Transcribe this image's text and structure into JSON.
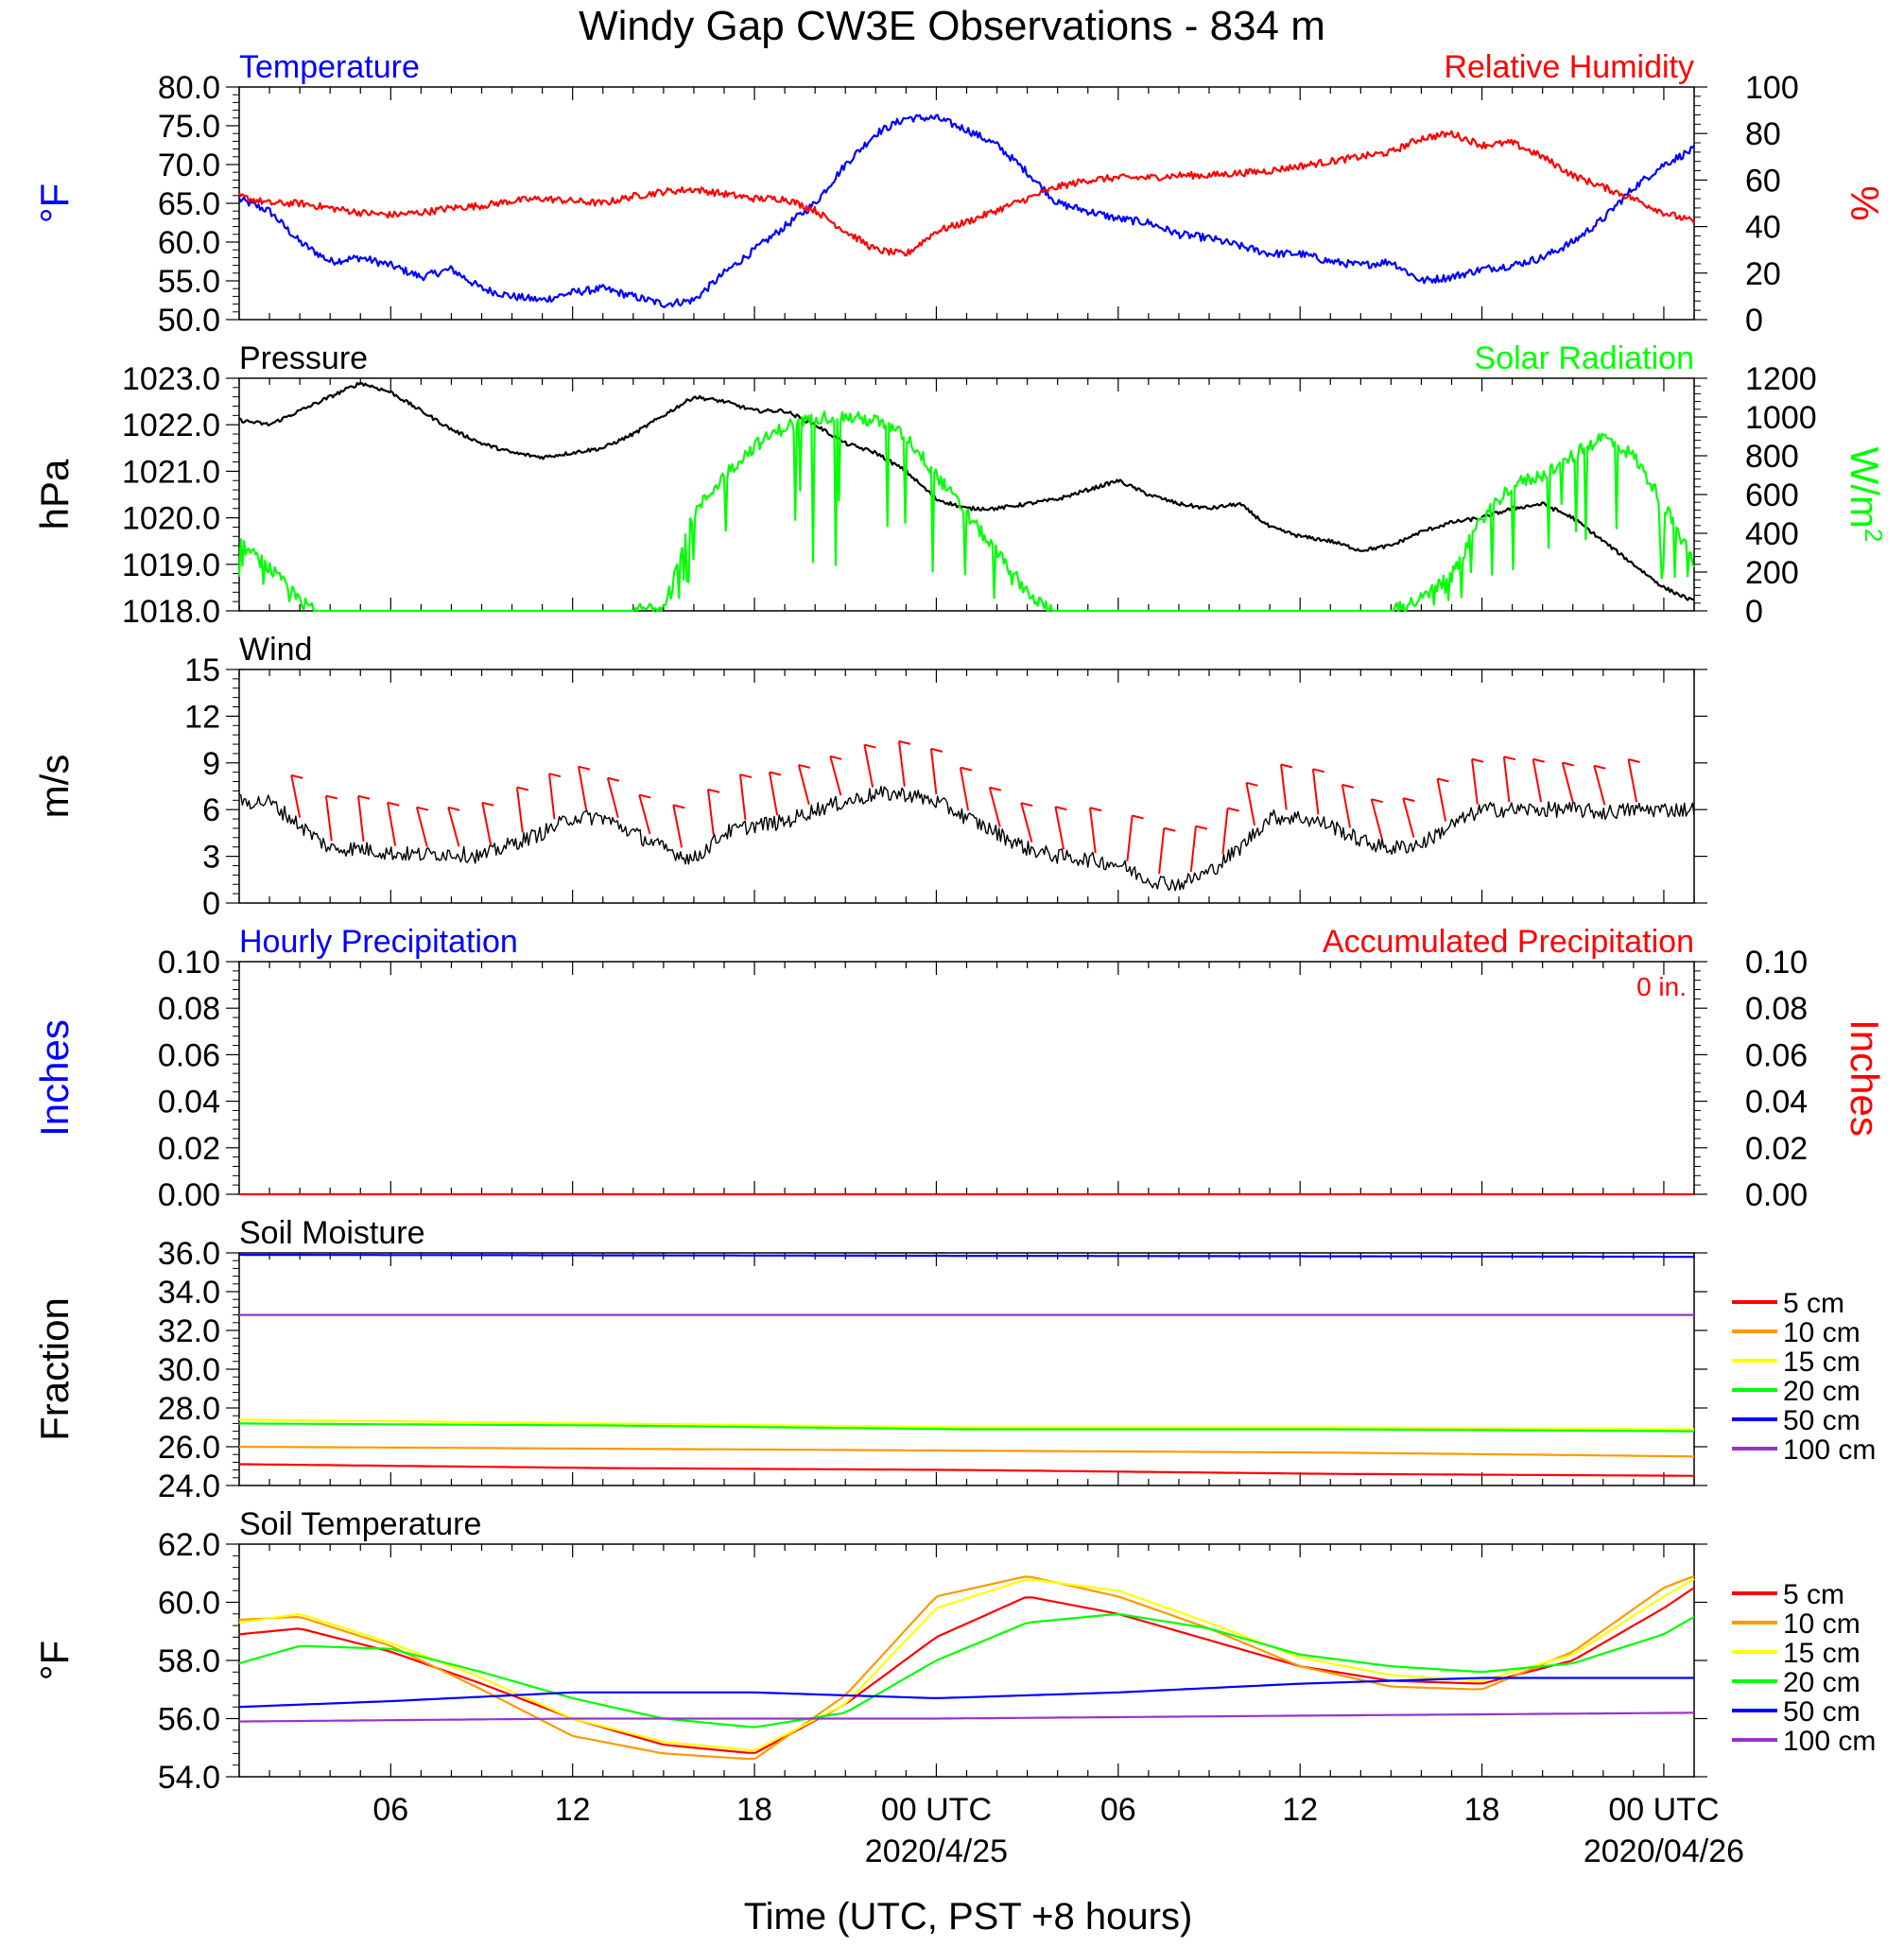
{
  "title": "Windy Gap CW3E Observations - 834 m",
  "x_axis": {
    "label": "Time (UTC, PST +8 hours)",
    "tick_labels": [
      "06",
      "12",
      "18",
      "00 UTC",
      "06",
      "12",
      "18",
      "00 UTC"
    ],
    "tick_hours": [
      6,
      12,
      18,
      24,
      30,
      36,
      42,
      48
    ],
    "date_labels": [
      {
        "hour": 24,
        "text": "2020/4/25"
      },
      {
        "hour": 48,
        "text": "2020/04/26"
      }
    ],
    "range_hours": [
      1,
      49
    ]
  },
  "chart_data": [
    {
      "type": "line",
      "panel": "temperature_humidity",
      "left_title": "Temperature",
      "right_title": "Relative Humidity",
      "ylabel_left": "°F",
      "ylabel_right": "%",
      "ylim_left": [
        50,
        80
      ],
      "ylim_right": [
        0,
        100
      ],
      "yticks_left": [
        "80.0",
        "75.0",
        "70.0",
        "65.0",
        "60.0",
        "55.0",
        "50.0"
      ],
      "yticks_right": [
        "100",
        "80",
        "60",
        "40",
        "20",
        "0"
      ],
      "colors": {
        "left": "#0000ff",
        "right": "#ff0000"
      },
      "series": [
        {
          "name": "Temperature",
          "axis": "left",
          "noise": 0.5,
          "x": [
            1,
            2,
            3,
            4,
            5,
            6,
            7,
            8,
            9,
            10,
            11,
            12,
            13,
            14,
            15,
            16,
            17,
            18,
            19,
            20,
            21,
            22,
            23,
            24,
            25,
            26,
            27,
            28,
            29,
            30,
            31,
            32,
            33,
            34,
            35,
            36,
            37,
            38,
            39,
            40,
            41,
            42,
            43,
            44,
            45,
            46,
            47,
            48,
            49
          ],
          "y": [
            65.5,
            64,
            60,
            57.5,
            58,
            57,
            55.5,
            56.5,
            54,
            53,
            52.5,
            53.5,
            54,
            53,
            52,
            52.5,
            56,
            59,
            62,
            65,
            70,
            74,
            76,
            76,
            74.5,
            72.5,
            69,
            65,
            64,
            63,
            62.5,
            61,
            60.5,
            59.5,
            58.5,
            58.5,
            57.5,
            57,
            57.5,
            55,
            55.5,
            56.5,
            57,
            58,
            60,
            63,
            67,
            70,
            72
          ]
        },
        {
          "name": "Relative Humidity",
          "axis": "right",
          "noise": 1.5,
          "x": [
            1,
            2,
            3,
            4,
            5,
            6,
            7,
            8,
            9,
            10,
            11,
            12,
            13,
            14,
            15,
            16,
            17,
            18,
            19,
            20,
            21,
            22,
            23,
            24,
            25,
            26,
            27,
            28,
            29,
            30,
            31,
            32,
            33,
            34,
            35,
            36,
            37,
            38,
            39,
            40,
            41,
            42,
            43,
            44,
            45,
            46,
            47,
            48,
            49
          ],
          "y": [
            53,
            50,
            50,
            48,
            46,
            45,
            46,
            48,
            49,
            51,
            52,
            51,
            50,
            53,
            55,
            56,
            54,
            52,
            52,
            47,
            38,
            30,
            28,
            38,
            42,
            47,
            52,
            57,
            60,
            61,
            61,
            62,
            62,
            63,
            64,
            66,
            68,
            70,
            72,
            78,
            80,
            75,
            76,
            70,
            62,
            57,
            52,
            46,
            42
          ]
        }
      ]
    },
    {
      "type": "line",
      "panel": "pressure_solar",
      "left_title": "Pressure",
      "right_title": "Solar Radiation",
      "ylabel_left": "hPa",
      "ylabel_right": "W/m",
      "ylabel_right_sup": "2",
      "ylim_left": [
        1018,
        1023
      ],
      "ylim_right": [
        0,
        1200
      ],
      "yticks_left": [
        "1023.0",
        "1022.0",
        "1021.0",
        "1020.0",
        "1019.0",
        "1018.0"
      ],
      "yticks_right": [
        "1200",
        "1000",
        "800",
        "600",
        "400",
        "200",
        "0"
      ],
      "colors": {
        "left": "#000000",
        "right": "#00ff00"
      },
      "series": [
        {
          "name": "Pressure",
          "axis": "left",
          "noise": 0.04,
          "x": [
            1,
            2,
            3,
            4,
            5,
            6,
            7,
            8,
            9,
            10,
            11,
            12,
            13,
            14,
            15,
            16,
            17,
            18,
            19,
            20,
            21,
            22,
            23,
            24,
            25,
            26,
            27,
            28,
            29,
            30,
            31,
            32,
            33,
            34,
            35,
            36,
            37,
            38,
            39,
            40,
            41,
            42,
            43,
            44,
            45,
            46,
            47,
            48,
            49
          ],
          "y": [
            1022.1,
            1022.0,
            1022.3,
            1022.6,
            1022.9,
            1022.7,
            1022.3,
            1021.9,
            1021.6,
            1021.4,
            1021.3,
            1021.4,
            1021.5,
            1021.8,
            1022.2,
            1022.6,
            1022.5,
            1022.3,
            1022.3,
            1022.0,
            1021.6,
            1021.4,
            1021.0,
            1020.4,
            1020.2,
            1020.2,
            1020.3,
            1020.4,
            1020.6,
            1020.8,
            1020.5,
            1020.3,
            1020.2,
            1020.3,
            1019.8,
            1019.6,
            1019.5,
            1019.3,
            1019.4,
            1019.7,
            1019.9,
            1020.0,
            1020.2,
            1020.3,
            1020.0,
            1019.5,
            1019.0,
            1018.5,
            1018.2
          ]
        },
        {
          "name": "Solar Radiation",
          "axis": "right",
          "noise": 35,
          "spiky": true,
          "x": [
            1,
            2,
            3,
            3.5,
            10,
            14,
            15,
            16,
            17,
            18,
            19,
            20,
            21,
            22,
            23,
            24,
            25,
            26,
            27,
            27.5,
            28,
            37,
            39,
            40,
            41,
            42,
            43,
            44,
            45,
            46,
            47,
            48,
            49
          ],
          "y": [
            350,
            220,
            50,
            0,
            0,
            0,
            30,
            500,
            700,
            850,
            950,
            1000,
            1000,
            980,
            900,
            700,
            500,
            300,
            100,
            30,
            0,
            0,
            0,
            60,
            180,
            480,
            650,
            700,
            800,
            900,
            800,
            550,
            250
          ]
        }
      ]
    },
    {
      "type": "line",
      "panel": "wind",
      "left_title": "Wind",
      "ylabel_left": "m/s",
      "ylim_left": [
        0,
        15
      ],
      "yticks_left": [
        "15",
        "12",
        "9",
        "6",
        "3",
        "0"
      ],
      "colors": {
        "left": "#000000",
        "barbs": "#ff0000"
      },
      "series": [
        {
          "name": "Wind",
          "axis": "left",
          "noise": 0.5,
          "x": [
            1,
            2,
            3,
            4,
            5,
            6,
            7,
            8,
            9,
            10,
            11,
            12,
            13,
            14,
            15,
            16,
            17,
            18,
            19,
            20,
            21,
            22,
            23,
            24,
            25,
            26,
            27,
            28,
            29,
            30,
            31,
            32,
            33,
            34,
            35,
            36,
            37,
            38,
            39,
            40,
            41,
            42,
            43,
            44,
            45,
            46,
            47,
            48,
            49
          ],
          "y": [
            6.5,
            6.5,
            5,
            3.5,
            3.5,
            3.2,
            3.1,
            3.2,
            3.0,
            3.8,
            4.5,
            5.5,
            5.5,
            4.5,
            3.5,
            2.8,
            4.5,
            5.0,
            5.2,
            6.0,
            6.5,
            7.0,
            7.0,
            6.5,
            5.5,
            4.5,
            3.5,
            3.0,
            2.8,
            2.5,
            1.5,
            1.2,
            2.0,
            3.5,
            5.5,
            5.5,
            5.0,
            4.0,
            3.5,
            3.8,
            5.0,
            6.0,
            6.0,
            6.0,
            6.0,
            5.8,
            6.0,
            6.0,
            6.0
          ]
        }
      ]
    },
    {
      "type": "line",
      "panel": "precipitation",
      "left_title": "Hourly Precipitation",
      "right_title": "Accumulated Precipitation",
      "annotation": "0 in.",
      "ylabel_left": "Inches",
      "ylabel_right": "Inches",
      "ylim_left": [
        0,
        0.1
      ],
      "ylim_right": [
        0,
        0.1
      ],
      "yticks_left": [
        "0.10",
        "0.08",
        "0.06",
        "0.04",
        "0.02",
        "0.00"
      ],
      "yticks_right": [
        "0.10",
        "0.08",
        "0.06",
        "0.04",
        "0.02",
        "0.00"
      ],
      "colors": {
        "left": "#0000ff",
        "right": "#ff0000"
      },
      "series": [
        {
          "name": "Accumulated Precipitation",
          "axis": "right",
          "x": [
            1,
            49
          ],
          "y": [
            0,
            0
          ]
        }
      ]
    },
    {
      "type": "line",
      "panel": "soil_moisture",
      "left_title": "Soil Moisture",
      "ylabel_left": "Fraction",
      "ylim_left": [
        24,
        36
      ],
      "yticks_left": [
        "36.0",
        "34.0",
        "32.0",
        "30.0",
        "28.0",
        "26.0",
        "24.0"
      ],
      "legend": "right",
      "series": [
        {
          "name": "5 cm",
          "color": "#ff0000",
          "axis": "left",
          "x": [
            1,
            13,
            25,
            37,
            49
          ],
          "y": [
            25.1,
            24.9,
            24.8,
            24.6,
            24.5
          ]
        },
        {
          "name": "10 cm",
          "color": "#ff9900",
          "axis": "left",
          "x": [
            1,
            13,
            25,
            37,
            49
          ],
          "y": [
            26.0,
            25.9,
            25.8,
            25.7,
            25.5
          ]
        },
        {
          "name": "15 cm",
          "color": "#ffff00",
          "axis": "left",
          "x": [
            1,
            13,
            25,
            37,
            49
          ],
          "y": [
            27.4,
            27.2,
            27.0,
            27.0,
            26.9
          ]
        },
        {
          "name": "20 cm",
          "color": "#00ff00",
          "axis": "left",
          "x": [
            1,
            13,
            25,
            37,
            49
          ],
          "y": [
            27.2,
            27.1,
            26.9,
            26.9,
            26.8
          ]
        },
        {
          "name": "50 cm",
          "color": "#0000ff",
          "axis": "left",
          "x": [
            1,
            49
          ],
          "y": [
            35.9,
            35.8
          ]
        },
        {
          "name": "100 cm",
          "color": "#9933cc",
          "axis": "left",
          "x": [
            1,
            49
          ],
          "y": [
            32.8,
            32.8
          ]
        }
      ]
    },
    {
      "type": "line",
      "panel": "soil_temperature",
      "left_title": "Soil Temperature",
      "ylabel_left": "°F",
      "ylim_left": [
        54,
        62
      ],
      "yticks_left": [
        "62.0",
        "60.0",
        "58.0",
        "56.0",
        "54.0"
      ],
      "legend": "right",
      "series": [
        {
          "name": "5 cm",
          "color": "#ff0000",
          "axis": "left",
          "x": [
            1,
            3,
            6,
            9,
            12,
            15,
            18,
            21,
            24,
            27,
            30,
            33,
            36,
            39,
            42,
            45,
            48,
            49
          ],
          "y": [
            58.9,
            59.1,
            58.3,
            57.2,
            56.0,
            55.1,
            54.8,
            56.5,
            58.8,
            60.2,
            59.6,
            58.7,
            57.8,
            57.3,
            57.2,
            58.0,
            59.8,
            60.5
          ]
        },
        {
          "name": "10 cm",
          "color": "#ff9900",
          "axis": "left",
          "x": [
            1,
            3,
            6,
            9,
            12,
            15,
            18,
            21,
            24,
            27,
            30,
            33,
            36,
            39,
            42,
            45,
            48,
            49
          ],
          "y": [
            59.4,
            59.5,
            58.5,
            57.0,
            55.4,
            54.8,
            54.6,
            56.8,
            60.2,
            60.9,
            60.2,
            59.1,
            57.8,
            57.1,
            57.0,
            58.3,
            60.5,
            60.9
          ]
        },
        {
          "name": "15 cm",
          "color": "#ffff00",
          "axis": "left",
          "x": [
            1,
            3,
            6,
            9,
            12,
            15,
            18,
            21,
            24,
            27,
            30,
            33,
            36,
            39,
            42,
            45,
            48,
            49
          ],
          "y": [
            59.3,
            59.6,
            58.6,
            57.4,
            56.0,
            55.2,
            54.9,
            56.5,
            59.8,
            60.8,
            60.4,
            59.3,
            58.1,
            57.5,
            57.3,
            58.2,
            60.2,
            60.8
          ]
        },
        {
          "name": "20 cm",
          "color": "#00ff00",
          "axis": "left",
          "x": [
            1,
            3,
            6,
            9,
            12,
            15,
            18,
            21,
            24,
            27,
            30,
            33,
            36,
            39,
            42,
            45,
            48,
            49
          ],
          "y": [
            57.9,
            58.5,
            58.4,
            57.6,
            56.7,
            56.0,
            55.7,
            56.2,
            58.0,
            59.3,
            59.6,
            59.1,
            58.2,
            57.8,
            57.6,
            57.9,
            58.9,
            59.5
          ]
        },
        {
          "name": "50 cm",
          "color": "#0000ff",
          "axis": "left",
          "x": [
            1,
            6,
            12,
            18,
            24,
            30,
            36,
            42,
            49
          ],
          "y": [
            56.4,
            56.6,
            56.9,
            56.9,
            56.7,
            56.9,
            57.2,
            57.4,
            57.4
          ]
        },
        {
          "name": "100 cm",
          "color": "#9933cc",
          "axis": "left",
          "x": [
            1,
            12,
            24,
            36,
            49
          ],
          "y": [
            55.9,
            56.0,
            56.0,
            56.1,
            56.2
          ]
        }
      ]
    }
  ]
}
